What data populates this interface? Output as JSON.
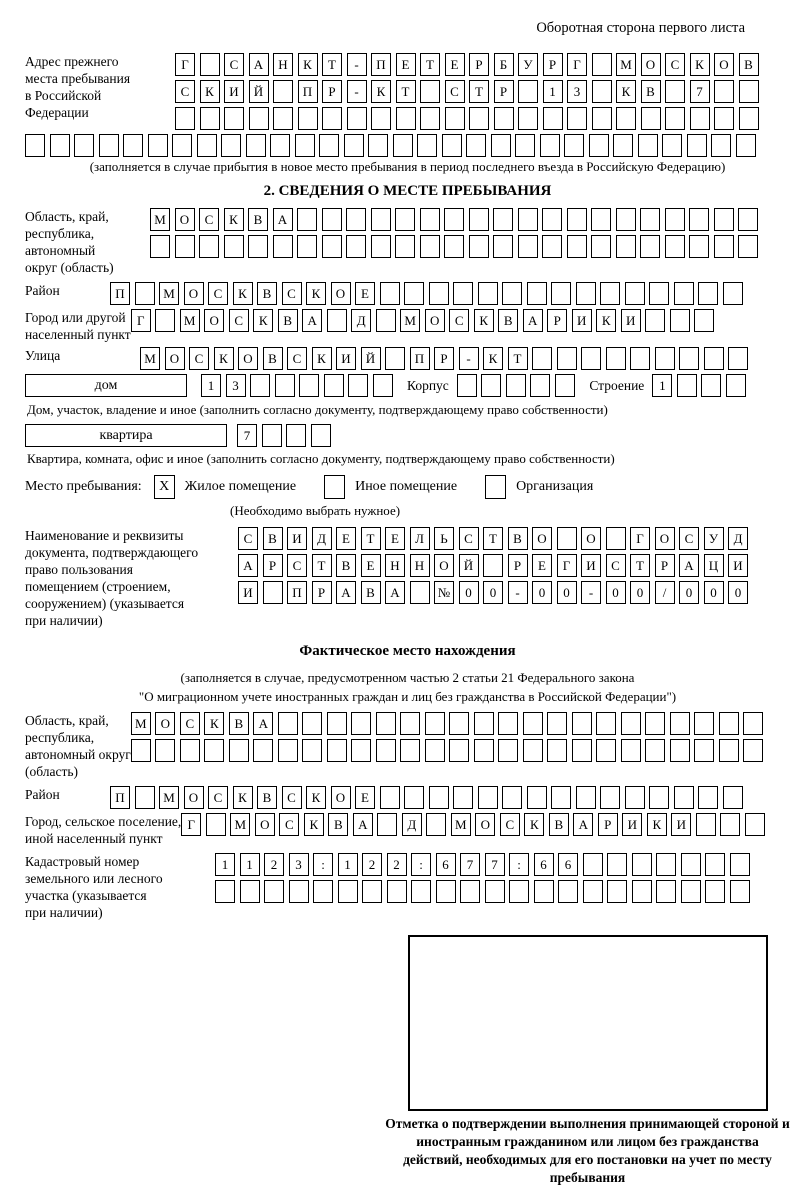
{
  "colors": {
    "border": "#000000",
    "background": "#ffffff"
  },
  "header": {
    "note": "Оборотная сторона первого листа"
  },
  "prev_address": {
    "label": "Адрес прежнего\nместа пребывания\nв Российской\nФедерации",
    "rows": [
      {
        "text": "Г САНКТ-ПЕТЕРБУРГ МОСКОВ",
        "len": 24
      },
      {
        "text": "СКИЙ ПР-КТ СТР 13 КВ 7",
        "len": 24
      },
      {
        "text": "",
        "len": 24
      },
      {
        "text": "",
        "len": 30
      }
    ],
    "caption": "(заполняется в случае прибытия в новое место пребывания в период последнего въезда в Российскую Федерацию)"
  },
  "section2": {
    "title": "2. СВЕДЕНИЯ О МЕСТЕ ПРЕБЫВАНИЯ",
    "region": {
      "label": "Область, край,\nреспублика,\nавтономный\nокруг (область)",
      "rows": [
        {
          "text": "МОСКВА",
          "len": 25
        },
        {
          "text": "",
          "len": 25
        }
      ]
    },
    "district": {
      "label": "Район",
      "row": {
        "text": "П МОСКВСКОЕ",
        "len": 26
      }
    },
    "city": {
      "label": "Город или другой\nнаселенный пункт",
      "row": {
        "text": "Г МОСКВА Д МОСКВАРИКИ",
        "len": 24
      }
    },
    "street": {
      "label": "Улица",
      "row": {
        "text": "МОСКОВСКИЙ ПР-КТ",
        "len": 25
      }
    },
    "house": {
      "box_label": "дом",
      "cells": {
        "text": "13",
        "len": 8
      },
      "korpus_label": "Корпус",
      "korpus_cells": {
        "text": "",
        "len": 5
      },
      "stroenie_label": "Строение",
      "stroenie_cells": {
        "text": "1",
        "len": 4
      },
      "caption": "Дом, участок, владение и иное (заполнить согласно документу, подтверждающему право собственности)"
    },
    "apartment": {
      "box_label": "квартира",
      "cells": {
        "text": "7",
        "len": 4
      },
      "caption": "Квартира, комната, офис и иное (заполнить согласно документу, подтверждающему право собственности)"
    },
    "stay_type": {
      "label": "Место пребывания:",
      "options": [
        {
          "label": "Жилое помещение",
          "checked": "X"
        },
        {
          "label": "Иное помещение",
          "checked": ""
        },
        {
          "label": "Организация",
          "checked": ""
        }
      ],
      "hint": "(Необходимо выбрать нужное)"
    },
    "document": {
      "label": "Наименование и реквизиты\nдокумента, подтверждающего\nправо пользования\nпомещением (строением,\nсооружением) (указывается\nпри наличии)",
      "rows": [
        {
          "text": "СВИДЕТЕЛЬСТВО О ГОСУД",
          "len": 21
        },
        {
          "text": "АРСТВЕННОЙ РЕГИСТРАЦИ",
          "len": 21
        },
        {
          "text": "И ПРАВА №00-00-00/000",
          "len": 21
        }
      ]
    }
  },
  "actual": {
    "title": "Фактическое место нахождения",
    "captions": [
      "(заполняется в случае, предусмотренном частью 2 статьи 21 Федерального закона",
      "\"О миграционном учете иностранных граждан и лиц без гражданства в Российской Федерации\")"
    ],
    "region": {
      "label": "Область, край,\nреспублика,\nавтономный округ\n(область)",
      "rows": [
        {
          "text": "МОСКВА",
          "len": 26
        },
        {
          "text": "",
          "len": 26
        }
      ]
    },
    "district": {
      "label": "Район",
      "row": {
        "text": "П МОСКВСКОЕ",
        "len": 26
      }
    },
    "city": {
      "label": "Город, сельское поселение,\nиной населенный пункт",
      "row": {
        "text": "Г МОСКВА Д МОСКВАРИКИ",
        "len": 24
      }
    },
    "cadastral": {
      "label": "Кадастровый номер\nземельного или лесного\nучастка (указывается\nпри наличии)",
      "rows": [
        {
          "text": "1123:122:677:66",
          "len": 22
        },
        {
          "text": "",
          "len": 22
        }
      ]
    },
    "stamp_caption": "Отметка о подтверждении выполнения принимающей стороной и иностранным гражданином или лицом без гражданства действий, необходимых для его постановки на учет по месту пребывания"
  }
}
